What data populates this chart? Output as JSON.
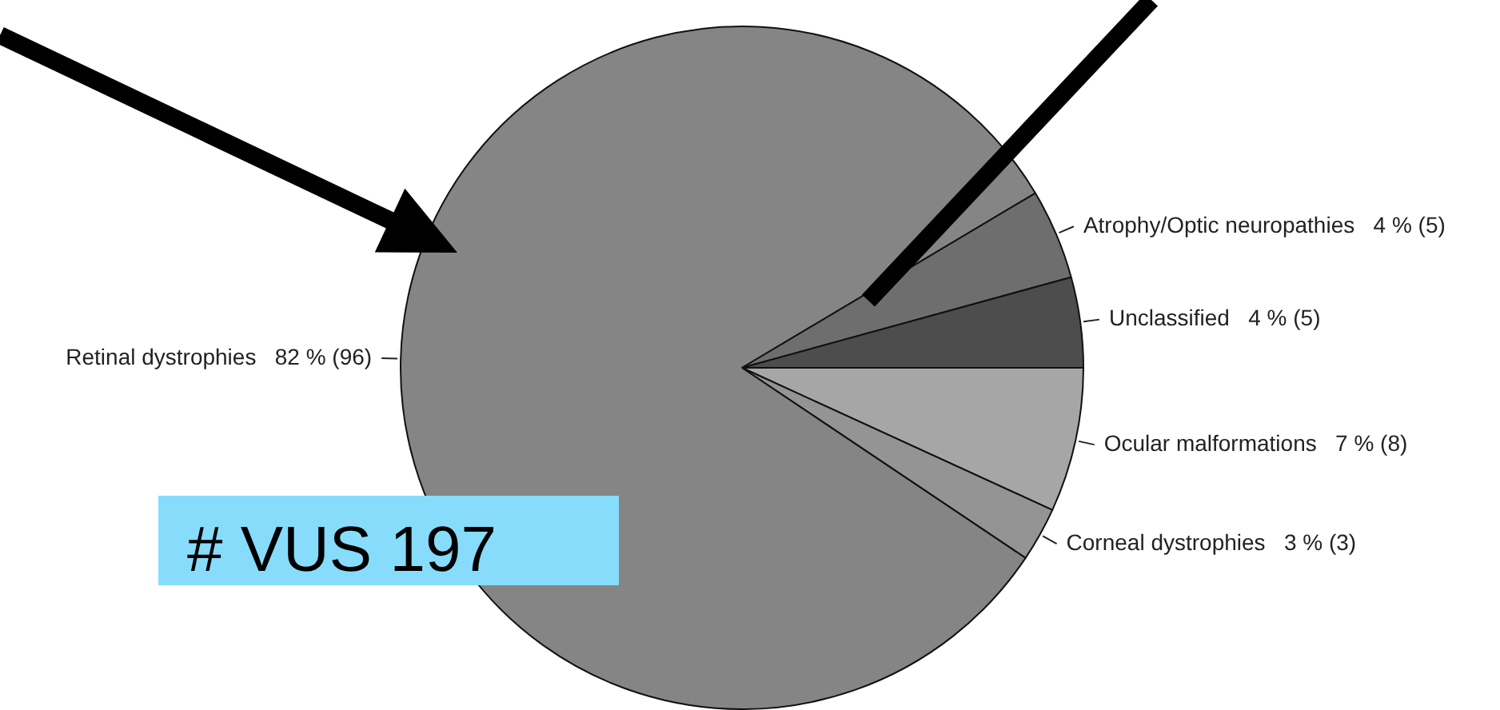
{
  "chart_data": {
    "type": "pie",
    "categories": [
      "Ocular malformations",
      "Corneal dystrophies",
      "Retinal dystrophies",
      "Atrophy/Optic neuropathies",
      "Unclassified"
    ],
    "values": [
      8,
      3,
      96,
      5,
      5
    ],
    "value_labels": [
      "7 % (8)",
      "3 % (3)",
      "82 % (96)",
      "4 % (5)",
      "4 % (5)"
    ],
    "colors": [
      "#a6a6a6",
      "#949494",
      "#858585",
      "#6e6e6e",
      "#4d4d4d"
    ],
    "annotations": [
      "# VUS 197"
    ]
  }
}
